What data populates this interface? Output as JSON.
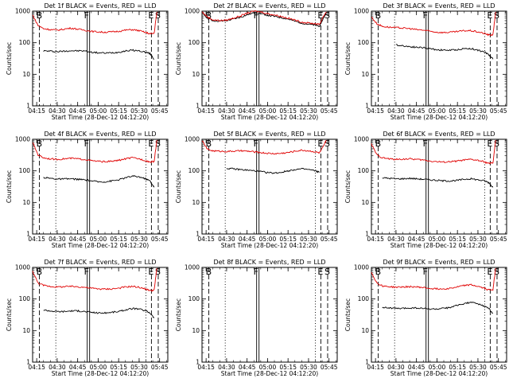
{
  "colors": {
    "events": "#000000",
    "lld": "#e00000",
    "axes": "#000000",
    "background": "#ffffff"
  },
  "common": {
    "xlabel": "Start Time (28-Dec-12 04:12:20)",
    "ylabel": "Counts/sec",
    "x_ticks": [
      "04:15",
      "04:30",
      "04:45",
      "05:00",
      "05:15",
      "05:30",
      "05:45"
    ],
    "y_ticks": [
      "1",
      "10",
      "100",
      "1000"
    ],
    "marker_labels": {
      "start": "B",
      "flare": "F",
      "end": "E",
      "stop": "S"
    }
  },
  "chart_data": [
    {
      "type": "line",
      "title": "Det 1f BLACK = Events, RED = LLD",
      "xlabel": "Start Time (28-Dec-12 04:12:20)",
      "ylabel": "Counts/sec",
      "x_unit": "time",
      "xlim": [
        "04:12",
        "05:51"
      ],
      "ylim": [
        1,
        1000
      ],
      "yscale": "log",
      "x": [
        "04:12",
        "04:16",
        "04:20",
        "04:25",
        "04:30",
        "04:35",
        "04:40",
        "04:45",
        "04:50",
        "04:55",
        "05:00",
        "05:05",
        "05:10",
        "05:15",
        "05:20",
        "05:25",
        "05:30",
        "05:35",
        "05:38",
        "05:41",
        "05:43"
      ],
      "series": [
        {
          "name": "Events",
          "color": "black",
          "values": [
            null,
            null,
            55,
            54,
            52,
            54,
            56,
            55,
            55,
            50,
            48,
            47,
            48,
            50,
            55,
            58,
            55,
            50,
            45,
            30,
            null
          ]
        },
        {
          "name": "LLD",
          "color": "red",
          "values": [
            750,
            350,
            280,
            260,
            250,
            270,
            290,
            270,
            250,
            230,
            220,
            215,
            220,
            230,
            250,
            260,
            240,
            210,
            190,
            200,
            950
          ]
        }
      ],
      "vlines": [
        {
          "label": "B",
          "x": "04:17",
          "style": "dashed"
        },
        {
          "label": "",
          "x": "04:29",
          "style": "dotted"
        },
        {
          "label": "F",
          "x": "04:52",
          "style": "solid"
        },
        {
          "label": "",
          "x": "05:35",
          "style": "dotted"
        },
        {
          "label": "E",
          "x": "05:39",
          "style": "dashed"
        },
        {
          "label": "S",
          "x": "05:44",
          "style": "dashed"
        }
      ]
    },
    {
      "type": "line",
      "title": "Det 2f BLACK = Events, RED = LLD",
      "xlabel": "Start Time (28-Dec-12 04:12:20)",
      "ylabel": "Counts/sec",
      "x_unit": "time",
      "xlim": [
        "04:12",
        "05:51"
      ],
      "ylim": [
        1,
        1000
      ],
      "yscale": "log",
      "x": [
        "04:12",
        "04:16",
        "04:20",
        "04:25",
        "04:30",
        "04:35",
        "04:40",
        "04:45",
        "04:50",
        "04:55",
        "05:00",
        "05:05",
        "05:10",
        "05:15",
        "05:20",
        "05:25",
        "05:30",
        "05:35",
        "05:38",
        "05:41",
        "05:43"
      ],
      "series": [
        {
          "name": "Events",
          "color": "black",
          "values": [
            900,
            600,
            500,
            480,
            500,
            560,
            640,
            760,
            880,
            840,
            740,
            680,
            620,
            560,
            480,
            420,
            380,
            360,
            340,
            600,
            900
          ]
        },
        {
          "name": "LLD",
          "color": "red",
          "values": [
            950,
            650,
            530,
            500,
            520,
            600,
            700,
            860,
            1000,
            950,
            830,
            760,
            680,
            600,
            520,
            450,
            420,
            400,
            380,
            700,
            950
          ]
        }
      ],
      "vlines": [
        {
          "label": "B",
          "x": "04:17",
          "style": "dashed"
        },
        {
          "label": "",
          "x": "04:29",
          "style": "dotted"
        },
        {
          "label": "F",
          "x": "04:52",
          "style": "solid"
        },
        {
          "label": "",
          "x": "05:35",
          "style": "dotted"
        },
        {
          "label": "E",
          "x": "05:39",
          "style": "dashed"
        },
        {
          "label": "S",
          "x": "05:44",
          "style": "dashed"
        }
      ]
    },
    {
      "type": "line",
      "title": "Det 3f BLACK = Events, RED = LLD",
      "xlabel": "Start Time (28-Dec-12 04:12:20)",
      "ylabel": "Counts/sec",
      "x_unit": "time",
      "xlim": [
        "04:12",
        "05:51"
      ],
      "ylim": [
        1,
        1000
      ],
      "yscale": "log",
      "x": [
        "04:12",
        "04:16",
        "04:20",
        "04:25",
        "04:30",
        "04:35",
        "04:40",
        "04:45",
        "04:50",
        "04:55",
        "05:00",
        "05:05",
        "05:10",
        "05:15",
        "05:20",
        "05:25",
        "05:30",
        "05:35",
        "05:38",
        "05:41",
        "05:43"
      ],
      "series": [
        {
          "name": "Events",
          "color": "black",
          "values": [
            null,
            null,
            null,
            null,
            85,
            80,
            75,
            72,
            70,
            65,
            60,
            58,
            58,
            60,
            65,
            65,
            58,
            50,
            42,
            30,
            null
          ]
        },
        {
          "name": "LLD",
          "color": "red",
          "values": [
            650,
            400,
            330,
            310,
            300,
            290,
            280,
            260,
            250,
            230,
            215,
            210,
            215,
            225,
            240,
            240,
            220,
            195,
            175,
            180,
            950
          ]
        }
      ],
      "vlines": [
        {
          "label": "B",
          "x": "04:17",
          "style": "dashed"
        },
        {
          "label": "",
          "x": "04:29",
          "style": "dotted"
        },
        {
          "label": "F",
          "x": "04:52",
          "style": "solid"
        },
        {
          "label": "",
          "x": "05:35",
          "style": "dotted"
        },
        {
          "label": "E",
          "x": "05:39",
          "style": "dashed"
        },
        {
          "label": "S",
          "x": "05:44",
          "style": "dashed"
        }
      ]
    },
    {
      "type": "line",
      "title": "Det 4f BLACK = Events, RED = LLD",
      "xlabel": "Start Time (28-Dec-12 04:12:20)",
      "ylabel": "Counts/sec",
      "x_unit": "time",
      "xlim": [
        "04:12",
        "05:51"
      ],
      "ylim": [
        1,
        1000
      ],
      "yscale": "log",
      "x": [
        "04:12",
        "04:16",
        "04:20",
        "04:25",
        "04:30",
        "04:35",
        "04:40",
        "04:45",
        "04:50",
        "04:55",
        "05:00",
        "05:05",
        "05:10",
        "05:15",
        "05:20",
        "05:25",
        "05:30",
        "05:35",
        "05:38",
        "05:41",
        "05:43"
      ],
      "series": [
        {
          "name": "Events",
          "color": "black",
          "values": [
            null,
            null,
            62,
            58,
            55,
            55,
            56,
            54,
            52,
            48,
            45,
            45,
            48,
            52,
            60,
            68,
            65,
            55,
            48,
            30,
            null
          ]
        },
        {
          "name": "LLD",
          "color": "red",
          "values": [
            800,
            320,
            260,
            240,
            230,
            240,
            250,
            240,
            230,
            210,
            200,
            195,
            200,
            215,
            240,
            260,
            240,
            210,
            190,
            200,
            950
          ]
        }
      ],
      "vlines": [
        {
          "label": "B",
          "x": "04:17",
          "style": "dashed"
        },
        {
          "label": "",
          "x": "04:29",
          "style": "dotted"
        },
        {
          "label": "F",
          "x": "04:52",
          "style": "solid"
        },
        {
          "label": "",
          "x": "05:35",
          "style": "dotted"
        },
        {
          "label": "E",
          "x": "05:39",
          "style": "dashed"
        },
        {
          "label": "S",
          "x": "05:44",
          "style": "dashed"
        }
      ]
    },
    {
      "type": "line",
      "title": "Det 5f BLACK = Events, RED = LLD",
      "xlabel": "Start Time (28-Dec-12 04:12:20)",
      "ylabel": "Counts/sec",
      "x_unit": "time",
      "xlim": [
        "04:12",
        "05:51"
      ],
      "ylim": [
        1,
        1000
      ],
      "yscale": "log",
      "x": [
        "04:12",
        "04:16",
        "04:20",
        "04:25",
        "04:30",
        "04:35",
        "04:40",
        "04:45",
        "04:50",
        "04:55",
        "05:00",
        "05:05",
        "05:10",
        "05:15",
        "05:20",
        "05:25",
        "05:30",
        "05:35",
        "05:38",
        "05:41",
        "05:43"
      ],
      "series": [
        {
          "name": "Events",
          "color": "black",
          "values": [
            null,
            null,
            null,
            null,
            120,
            115,
            110,
            105,
            100,
            95,
            88,
            85,
            90,
            100,
            110,
            115,
            110,
            100,
            90,
            null,
            null
          ]
        },
        {
          "name": "LLD",
          "color": "red",
          "values": [
            900,
            480,
            430,
            420,
            410,
            420,
            430,
            420,
            400,
            380,
            360,
            350,
            360,
            380,
            420,
            450,
            430,
            400,
            370,
            600,
            950
          ]
        }
      ],
      "vlines": [
        {
          "label": "B",
          "x": "04:17",
          "style": "dashed"
        },
        {
          "label": "",
          "x": "04:29",
          "style": "dotted"
        },
        {
          "label": "F",
          "x": "04:52",
          "style": "solid"
        },
        {
          "label": "",
          "x": "05:35",
          "style": "dotted"
        },
        {
          "label": "E",
          "x": "05:39",
          "style": "dashed"
        },
        {
          "label": "S",
          "x": "05:44",
          "style": "dashed"
        }
      ]
    },
    {
      "type": "line",
      "title": "Det 6f BLACK = Events, RED = LLD",
      "xlabel": "Start Time (28-Dec-12 04:12:20)",
      "ylabel": "Counts/sec",
      "x_unit": "time",
      "xlim": [
        "04:12",
        "05:51"
      ],
      "ylim": [
        1,
        1000
      ],
      "yscale": "log",
      "x": [
        "04:12",
        "04:16",
        "04:20",
        "04:25",
        "04:30",
        "04:35",
        "04:40",
        "04:45",
        "04:50",
        "04:55",
        "05:00",
        "05:05",
        "05:10",
        "05:15",
        "05:20",
        "05:25",
        "05:30",
        "05:35",
        "05:38",
        "05:41",
        "05:43"
      ],
      "series": [
        {
          "name": "Events",
          "color": "black",
          "values": [
            null,
            null,
            60,
            58,
            56,
            56,
            58,
            56,
            54,
            52,
            50,
            48,
            48,
            50,
            54,
            56,
            52,
            48,
            42,
            30,
            null
          ]
        },
        {
          "name": "LLD",
          "color": "red",
          "values": [
            700,
            320,
            260,
            240,
            230,
            235,
            240,
            230,
            220,
            205,
            195,
            190,
            195,
            205,
            220,
            230,
            215,
            190,
            170,
            180,
            950
          ]
        }
      ],
      "vlines": [
        {
          "label": "B",
          "x": "04:17",
          "style": "dashed"
        },
        {
          "label": "",
          "x": "04:29",
          "style": "dotted"
        },
        {
          "label": "F",
          "x": "04:52",
          "style": "solid"
        },
        {
          "label": "",
          "x": "05:35",
          "style": "dotted"
        },
        {
          "label": "E",
          "x": "05:39",
          "style": "dashed"
        },
        {
          "label": "S",
          "x": "05:44",
          "style": "dashed"
        }
      ]
    },
    {
      "type": "line",
      "title": "Det 7f BLACK = Events, RED = LLD",
      "xlabel": "Start Time (28-Dec-12 04:12:20)",
      "ylabel": "Counts/sec",
      "x_unit": "time",
      "xlim": [
        "04:12",
        "05:51"
      ],
      "ylim": [
        1,
        1000
      ],
      "yscale": "log",
      "x": [
        "04:12",
        "04:16",
        "04:20",
        "04:25",
        "04:30",
        "04:35",
        "04:40",
        "04:45",
        "04:50",
        "04:55",
        "05:00",
        "05:05",
        "05:10",
        "05:15",
        "05:20",
        "05:25",
        "05:30",
        "05:35",
        "05:38",
        "05:41",
        "05:43"
      ],
      "series": [
        {
          "name": "Events",
          "color": "black",
          "values": [
            null,
            null,
            45,
            42,
            40,
            40,
            42,
            42,
            40,
            38,
            36,
            36,
            38,
            40,
            45,
            50,
            48,
            42,
            36,
            25,
            null
          ]
        },
        {
          "name": "LLD",
          "color": "red",
          "values": [
            750,
            320,
            270,
            250,
            240,
            245,
            250,
            245,
            235,
            220,
            210,
            205,
            210,
            220,
            240,
            250,
            235,
            205,
            185,
            190,
            950
          ]
        }
      ],
      "vlines": [
        {
          "label": "B",
          "x": "04:17",
          "style": "dashed"
        },
        {
          "label": "",
          "x": "04:29",
          "style": "dotted"
        },
        {
          "label": "F",
          "x": "04:52",
          "style": "solid"
        },
        {
          "label": "",
          "x": "05:35",
          "style": "dotted"
        },
        {
          "label": "E",
          "x": "05:39",
          "style": "dashed"
        },
        {
          "label": "S",
          "x": "05:44",
          "style": "dashed"
        }
      ]
    },
    {
      "type": "line",
      "title": "Det 8f BLACK = Events, RED = LLD",
      "xlabel": "Start Time (28-Dec-12 04:12:20)",
      "ylabel": "Counts/sec",
      "x_unit": "time",
      "xlim": [
        "04:12",
        "05:51"
      ],
      "ylim": [
        1,
        1000
      ],
      "yscale": "log",
      "x": [],
      "series": [],
      "vlines": [
        {
          "label": "B",
          "x": "04:17",
          "style": "dashed"
        },
        {
          "label": "",
          "x": "04:29",
          "style": "dotted"
        },
        {
          "label": "F",
          "x": "04:52",
          "style": "solid"
        },
        {
          "label": "",
          "x": "05:35",
          "style": "dotted"
        },
        {
          "label": "E",
          "x": "05:39",
          "style": "dashed"
        },
        {
          "label": "S",
          "x": "05:44",
          "style": "dashed"
        }
      ]
    },
    {
      "type": "line",
      "title": "Det 9f BLACK = Events, RED = LLD",
      "xlabel": "Start Time (28-Dec-12 04:12:20)",
      "ylabel": "Counts/sec",
      "x_unit": "time",
      "xlim": [
        "04:12",
        "05:51"
      ],
      "ylim": [
        1,
        1000
      ],
      "yscale": "log",
      "x": [
        "04:12",
        "04:16",
        "04:20",
        "04:25",
        "04:30",
        "04:35",
        "04:40",
        "04:45",
        "04:50",
        "04:55",
        "05:00",
        "05:05",
        "05:10",
        "05:15",
        "05:20",
        "05:25",
        "05:30",
        "05:35",
        "05:38",
        "05:41",
        "05:43"
      ],
      "series": [
        {
          "name": "Events",
          "color": "black",
          "values": [
            null,
            null,
            55,
            52,
            50,
            50,
            52,
            52,
            50,
            48,
            48,
            50,
            55,
            62,
            72,
            78,
            70,
            58,
            50,
            35,
            null
          ]
        },
        {
          "name": "LLD",
          "color": "red",
          "values": [
            700,
            320,
            260,
            245,
            235,
            240,
            245,
            240,
            230,
            215,
            210,
            210,
            220,
            240,
            270,
            280,
            250,
            215,
            195,
            200,
            950
          ]
        }
      ],
      "vlines": [
        {
          "label": "B",
          "x": "04:17",
          "style": "dashed"
        },
        {
          "label": "",
          "x": "04:29",
          "style": "dotted"
        },
        {
          "label": "F",
          "x": "04:52",
          "style": "solid"
        },
        {
          "label": "",
          "x": "05:35",
          "style": "dotted"
        },
        {
          "label": "E",
          "x": "05:39",
          "style": "dashed"
        },
        {
          "label": "S",
          "x": "05:44",
          "style": "dashed"
        }
      ]
    }
  ]
}
